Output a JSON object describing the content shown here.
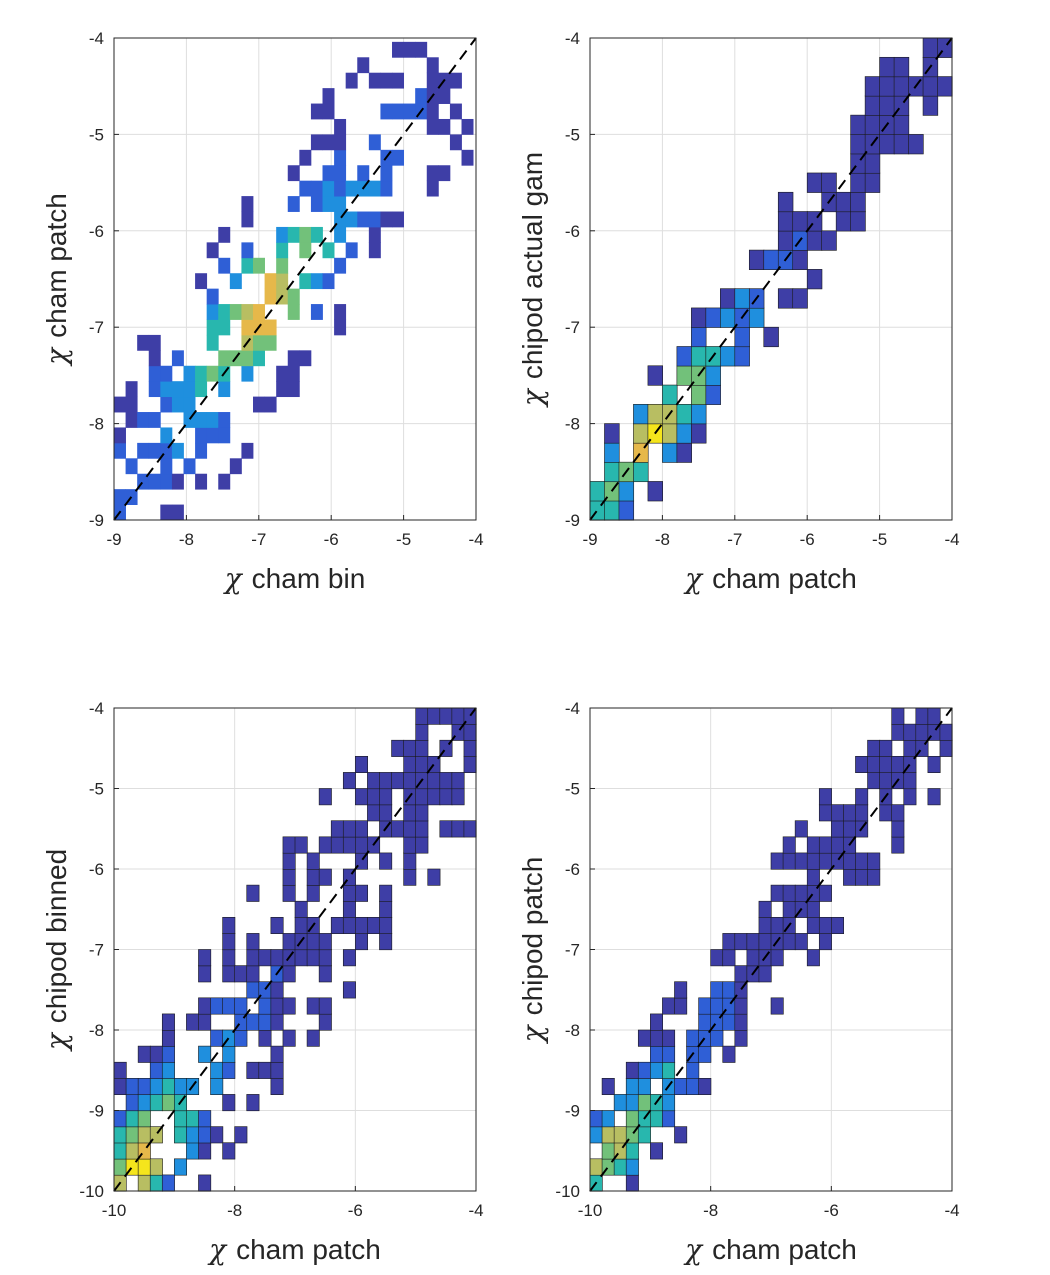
{
  "colors": {
    "dark_blue": "#3e3ea6",
    "blue": "#2f5fd6",
    "light_blue": "#1f8fde",
    "teal": "#28b7ae",
    "green": "#72c17a",
    "olive": "#b8be62",
    "orange": "#e6b84a",
    "yellow": "#f5e51c",
    "grid": "#dedede",
    "axis": "#262626"
  },
  "chart_data": [
    {
      "type": "heatmap",
      "title": "",
      "xlabel": {
        "symbol": "χ",
        "text": "cham bin"
      },
      "ylabel": {
        "symbol": "χ",
        "text": "cham patch"
      },
      "xlim": [
        -9,
        -4
      ],
      "ylim": [
        -9,
        -4
      ],
      "xticks": [
        "-9",
        "-8",
        "-7",
        "-6",
        "-5",
        "-4"
      ],
      "yticks": [
        "-9",
        "-8",
        "-7",
        "-6",
        "-5",
        "-4"
      ],
      "grid": true,
      "reference_line": "y = x (black dashed)",
      "colormap": "parula",
      "cell_border": false,
      "bin_width": 0.16,
      "diagonal_offset": 0.15,
      "density_peak": [
        -7.0,
        -6.8
      ],
      "spread": 0.55,
      "fill": 0.62,
      "seed": 11
    },
    {
      "type": "heatmap",
      "title": "",
      "xlabel": {
        "symbol": "χ",
        "text": "cham patch"
      },
      "ylabel": {
        "symbol": "χ",
        "text": "chipod actual gam"
      },
      "xlim": [
        -9,
        -4
      ],
      "ylim": [
        -9,
        -4
      ],
      "xticks": [
        "-9",
        "-8",
        "-7",
        "-6",
        "-5",
        "-4"
      ],
      "yticks": [
        "-9",
        "-8",
        "-7",
        "-6",
        "-5",
        "-4"
      ],
      "grid": true,
      "reference_line": "y = x (black dashed)",
      "colormap": "parula",
      "cell_border": true,
      "bin_width": 0.2,
      "diagonal_offset": 0.0,
      "density_peak": [
        -8.1,
        -8.1
      ],
      "spread": 0.3,
      "fill": 0.8,
      "seed": 23
    },
    {
      "type": "heatmap",
      "title": "",
      "xlabel": {
        "symbol": "χ",
        "text": "cham patch"
      },
      "ylabel": {
        "symbol": "χ",
        "text": "chipod binned"
      },
      "xlim": [
        -10,
        -4
      ],
      "ylim": [
        -10,
        -4
      ],
      "xticks": [
        "-10",
        "-8",
        "-6",
        "-4"
      ],
      "yticks": [
        "-10",
        "-9",
        "-8",
        "-7",
        "-6",
        "-5",
        "-4"
      ],
      "grid": true,
      "reference_line": "y = x (black dashed)",
      "colormap": "parula",
      "cell_border": true,
      "bin_width": 0.2,
      "diagonal_offset": 0.0,
      "density_peak": [
        -9.5,
        -9.7
      ],
      "spread": 0.6,
      "fill": 0.72,
      "seed": 37
    },
    {
      "type": "heatmap",
      "title": "",
      "xlabel": {
        "symbol": "χ",
        "text": "cham patch"
      },
      "ylabel": {
        "symbol": "χ",
        "text": "chipod patch"
      },
      "xlim": [
        -10,
        -4
      ],
      "ylim": [
        -10,
        -4
      ],
      "xticks": [
        "-10",
        "-8",
        "-6",
        "-4"
      ],
      "yticks": [
        "-10",
        "-9",
        "-8",
        "-7",
        "-6",
        "-5",
        "-4"
      ],
      "grid": true,
      "reference_line": "y = x (black dashed)",
      "colormap": "parula",
      "cell_border": true,
      "bin_width": 0.2,
      "diagonal_offset": 0.1,
      "density_peak": [
        -9.9,
        -9.3
      ],
      "spread": 0.4,
      "fill": 0.78,
      "seed": 53
    }
  ]
}
